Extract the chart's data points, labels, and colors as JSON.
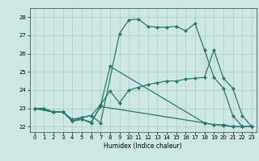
{
  "xlabel": "Humidex (Indice chaleur)",
  "xlim": [
    -0.5,
    23.5
  ],
  "ylim": [
    21.7,
    28.5
  ],
  "yticks": [
    22,
    23,
    24,
    25,
    26,
    27,
    28
  ],
  "xticks": [
    0,
    1,
    2,
    3,
    4,
    5,
    6,
    7,
    8,
    9,
    10,
    11,
    12,
    13,
    14,
    15,
    16,
    17,
    18,
    19,
    20,
    21,
    22,
    23
  ],
  "bg_color": "#cde8e4",
  "line_color": "#2a7a6a",
  "grid_color": "#b0c8c4",
  "lines": [
    {
      "x": [
        0,
        1,
        2,
        3,
        4,
        5,
        6,
        7,
        9,
        10,
        11,
        12,
        13,
        14,
        15,
        16,
        17,
        18,
        19,
        20,
        21,
        22,
        23
      ],
      "y": [
        23.0,
        23.0,
        22.8,
        22.8,
        22.4,
        22.5,
        22.6,
        22.2,
        27.1,
        27.85,
        27.9,
        27.5,
        27.45,
        27.45,
        27.5,
        27.25,
        27.65,
        26.2,
        24.7,
        24.1,
        22.6,
        22.0,
        22.0
      ],
      "marker": "D",
      "markersize": 2.0,
      "linewidth": 0.9
    },
    {
      "x": [
        0,
        2,
        3,
        4,
        5,
        6,
        7,
        8,
        9,
        10,
        11,
        12,
        13,
        14,
        15,
        16,
        17,
        18,
        19,
        20,
        21,
        22,
        23
      ],
      "y": [
        23.0,
        22.8,
        22.8,
        22.3,
        22.5,
        22.6,
        23.2,
        23.95,
        23.3,
        24.0,
        24.15,
        24.3,
        24.4,
        24.5,
        24.5,
        24.6,
        24.65,
        24.7,
        26.2,
        24.65,
        24.1,
        22.6,
        22.0
      ],
      "marker": "D",
      "markersize": 2.0,
      "linewidth": 0.9
    },
    {
      "x": [
        0,
        2,
        3,
        4,
        5,
        6,
        7,
        8,
        18,
        19,
        20,
        21,
        22,
        23
      ],
      "y": [
        23.0,
        22.8,
        22.8,
        22.3,
        22.4,
        22.2,
        23.15,
        25.3,
        22.2,
        22.1,
        22.1,
        22.0,
        22.0,
        22.0
      ],
      "marker": "D",
      "markersize": 2.0,
      "linewidth": 0.9
    },
    {
      "x": [
        0,
        2,
        3,
        4,
        5,
        6,
        7,
        18,
        19,
        20,
        21,
        22,
        23
      ],
      "y": [
        23.0,
        22.8,
        22.8,
        22.3,
        22.4,
        22.25,
        23.1,
        22.2,
        22.1,
        22.05,
        22.0,
        22.0,
        22.0
      ],
      "marker": "D",
      "markersize": 2.0,
      "linewidth": 0.9
    }
  ]
}
